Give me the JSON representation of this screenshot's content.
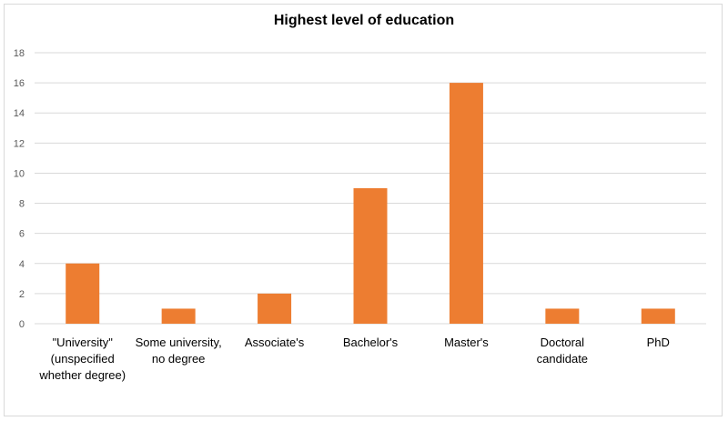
{
  "chart_data": {
    "type": "bar",
    "title": "Highest level of education",
    "xlabel": "",
    "ylabel": "",
    "ylim": [
      0,
      18
    ],
    "yticks": [
      0,
      2,
      4,
      6,
      8,
      10,
      12,
      14,
      16,
      18
    ],
    "grid": true,
    "legend": "none",
    "bar_color": "#ED7D31",
    "grid_color": "#D9D9D9",
    "categories": [
      "\"University\" (unspecified whether degree)",
      "Some university, no degree",
      "Associate's",
      "Bachelor's",
      "Master's",
      "Doctoral candidate",
      "PhD"
    ],
    "category_lines": [
      [
        "\"University\"",
        "(unspecified",
        "whether degree)"
      ],
      [
        "Some university,",
        "no degree"
      ],
      [
        "Associate's"
      ],
      [
        "Bachelor's"
      ],
      [
        "Master's"
      ],
      [
        "Doctoral",
        "candidate"
      ],
      [
        "PhD"
      ]
    ],
    "values": [
      4,
      1,
      2,
      9,
      16,
      1,
      1
    ]
  }
}
